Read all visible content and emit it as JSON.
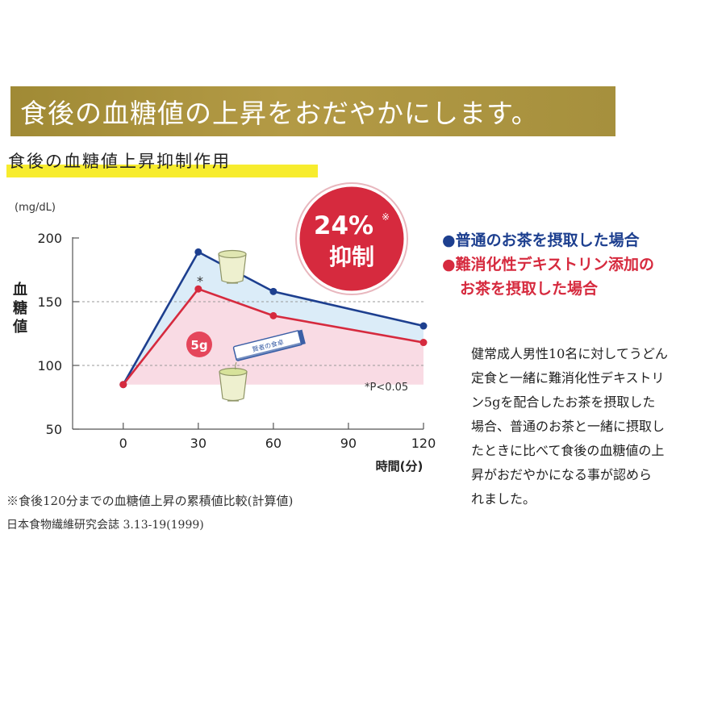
{
  "banner": {
    "title": "食後の血糖値の上昇をおだやかにします。"
  },
  "subtitle": "食後の血糖値上昇抑制作用",
  "badge": {
    "percent": "24%",
    "mark": "※",
    "label": "抑制"
  },
  "legend": {
    "blue": "●普通のお茶を摂取した場合",
    "red_line1": "●難消化性デキストリン添加の",
    "red_line2": "お茶を摂取した場合"
  },
  "description": [
    "健常成人男性10名に対してうどん",
    "定食と一緒に難消化性デキストリ",
    "ン5gを配合したお茶を摂取した",
    "場合、普通のお茶と一緒に摂取し",
    "たときに比べて食後の血糖値の上",
    "昇がおだやかになる事が認めら",
    "れました。"
  ],
  "footnote": "※食後120分までの血糖値上昇の累積値比較(計算値)",
  "source": "日本食物繊維研究会誌 3.13-19(1999)",
  "product_label": "賢者の食卓",
  "dose_label": "5g",
  "colors": {
    "blue": "#1d3f8f",
    "red": "#d62a3e",
    "banner": "#a8913f",
    "highlight": "#f7ec2e"
  },
  "chart_data": {
    "type": "line",
    "unit_label": "(mg/dL)",
    "ylabel": "血糖値",
    "xlabel": "時間(分)",
    "x": [
      0,
      30,
      60,
      120
    ],
    "x_ticks": [
      "0",
      "30",
      "60",
      "90",
      "120"
    ],
    "x_tick_values": [
      0,
      30,
      60,
      90,
      120
    ],
    "y_ticks": [
      "50",
      "100",
      "150",
      "200"
    ],
    "y_tick_values": [
      50,
      100,
      150,
      200
    ],
    "xlim": [
      -37,
      120
    ],
    "ylim": [
      50,
      200
    ],
    "series": [
      {
        "name": "普通のお茶を摂取した場合",
        "values": [
          85,
          189,
          158,
          131
        ],
        "color": "#1d3f8f"
      },
      {
        "name": "難消化性デキストリン添加のお茶を摂取した場合",
        "values": [
          85,
          160,
          139,
          118
        ],
        "color": "#d62a3e"
      }
    ],
    "asterisk": "*",
    "significance": "*P<0.05",
    "baseline": 85,
    "grid_lines_at": [
      100,
      150
    ]
  }
}
